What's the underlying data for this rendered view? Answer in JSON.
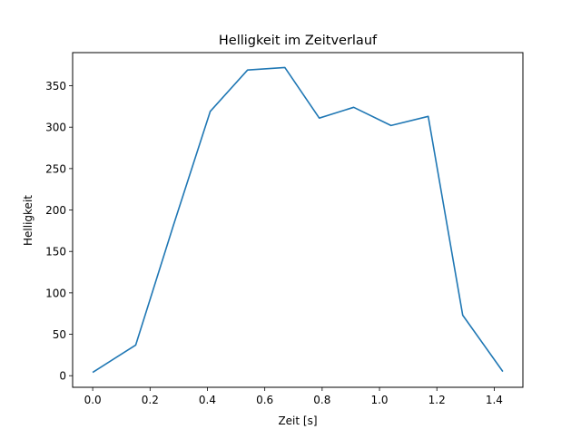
{
  "chart_data": {
    "type": "line",
    "title": "Helligkeit im Zeitverlauf",
    "xlabel": "Zeit [s]",
    "ylabel": "Helligkeit",
    "xlim": [
      -0.07,
      1.5
    ],
    "ylim": [
      -14,
      390
    ],
    "xticks": [
      0.0,
      0.2,
      0.4,
      0.6,
      0.8,
      1.0,
      1.2,
      1.4
    ],
    "xtick_labels": [
      "0.0",
      "0.2",
      "0.4",
      "0.6",
      "0.8",
      "1.0",
      "1.2",
      "1.4"
    ],
    "yticks": [
      0,
      50,
      100,
      150,
      200,
      250,
      300,
      350
    ],
    "ytick_labels": [
      "0",
      "50",
      "100",
      "150",
      "200",
      "250",
      "300",
      "350"
    ],
    "grid": false,
    "series": [
      {
        "name": "Helligkeit",
        "color": "#1f77b4",
        "x": [
          0.0,
          0.15,
          0.28,
          0.41,
          0.54,
          0.67,
          0.79,
          0.91,
          1.04,
          1.17,
          1.29,
          1.43
        ],
        "y": [
          4,
          37,
          180,
          319,
          369,
          372,
          311,
          324,
          302,
          313,
          73,
          5
        ]
      }
    ]
  }
}
